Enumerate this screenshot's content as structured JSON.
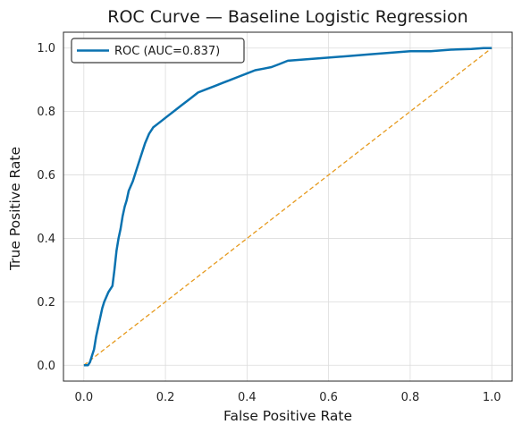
{
  "chart_data": {
    "type": "line",
    "title": "ROC Curve — Baseline Logistic Regression",
    "xlabel": "False Positive Rate",
    "ylabel": "True Positive Rate",
    "xlim": [
      -0.05,
      1.05
    ],
    "ylim": [
      -0.05,
      1.05
    ],
    "xticks": [
      0.0,
      0.2,
      0.4,
      0.6,
      0.8,
      1.0
    ],
    "xtick_labels": [
      "0.0",
      "0.2",
      "0.4",
      "0.6",
      "0.8",
      "1.0"
    ],
    "yticks": [
      0.0,
      0.2,
      0.4,
      0.6,
      0.8,
      1.0
    ],
    "ytick_labels": [
      "0.0",
      "0.2",
      "0.4",
      "0.6",
      "0.8",
      "1.0"
    ],
    "grid": true,
    "legend_position": "top-left",
    "series": [
      {
        "name": "ROC (AUC=0.837)",
        "color": "#0a72b0",
        "style": "solid",
        "x": [
          0.0,
          0.01,
          0.015,
          0.02,
          0.025,
          0.03,
          0.035,
          0.04,
          0.045,
          0.05,
          0.06,
          0.07,
          0.075,
          0.08,
          0.085,
          0.09,
          0.095,
          0.1,
          0.105,
          0.11,
          0.12,
          0.13,
          0.14,
          0.15,
          0.16,
          0.17,
          0.18,
          0.19,
          0.2,
          0.22,
          0.24,
          0.26,
          0.28,
          0.3,
          0.32,
          0.34,
          0.36,
          0.38,
          0.4,
          0.42,
          0.44,
          0.46,
          0.48,
          0.5,
          0.55,
          0.6,
          0.65,
          0.7,
          0.75,
          0.8,
          0.85,
          0.9,
          0.95,
          0.98,
          1.0
        ],
        "y": [
          0.0,
          0.0,
          0.01,
          0.03,
          0.05,
          0.09,
          0.12,
          0.15,
          0.18,
          0.2,
          0.23,
          0.25,
          0.3,
          0.36,
          0.4,
          0.43,
          0.47,
          0.5,
          0.52,
          0.55,
          0.58,
          0.62,
          0.66,
          0.7,
          0.73,
          0.75,
          0.76,
          0.77,
          0.78,
          0.8,
          0.82,
          0.84,
          0.86,
          0.87,
          0.88,
          0.89,
          0.9,
          0.91,
          0.92,
          0.93,
          0.935,
          0.94,
          0.95,
          0.96,
          0.965,
          0.97,
          0.975,
          0.98,
          0.985,
          0.99,
          0.99,
          0.995,
          0.997,
          1.0,
          1.0
        ]
      },
      {
        "name": "",
        "color": "#e69a1e",
        "style": "dashed",
        "x": [
          0.0,
          1.0
        ],
        "y": [
          0.0,
          1.0
        ]
      }
    ]
  }
}
